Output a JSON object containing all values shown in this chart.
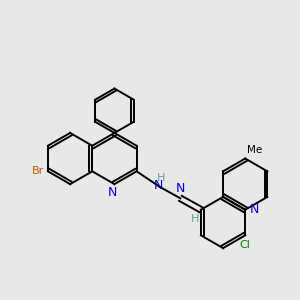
{
  "background_color": "#e8e8e8",
  "bond_color": "#000000",
  "n_color": "#0000cd",
  "br_color": "#b85c00",
  "cl_color": "#008000",
  "h_color": "#5f9ea0",
  "line_width": 1.4,
  "fig_size": [
    3.0,
    3.0
  ],
  "dpi": 100,
  "xlim": [
    -1.0,
    9.5
  ],
  "ylim": [
    -0.5,
    9.5
  ]
}
